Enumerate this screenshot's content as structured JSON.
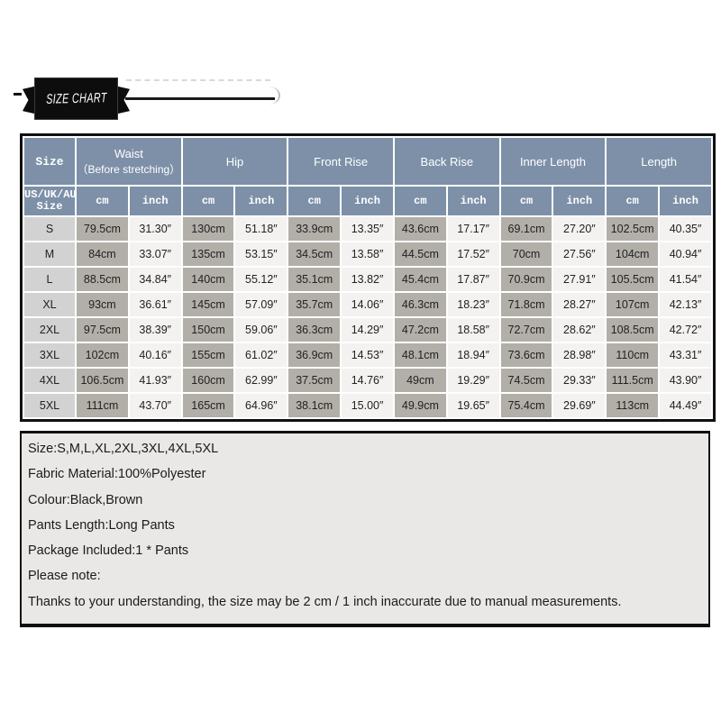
{
  "banner": {
    "title": "SIZE CHART"
  },
  "colors": {
    "ribbon": "#0d0d0d",
    "header_bg": "#7d90a8",
    "cm_col_bg": "#b2afa9",
    "inch_col_bg": "#f3f2f0",
    "size_col_bg": "#d2d2d2",
    "info_bg": "#e9e8e6"
  },
  "table": {
    "size_header": "Size",
    "size_subheader_line1": "US/UK/AU",
    "size_subheader_line2": "Size",
    "units": [
      "cm",
      "inch"
    ],
    "groups": [
      {
        "label": "Waist",
        "sublabel": "（Before stretching）"
      },
      {
        "label": "Hip",
        "sublabel": ""
      },
      {
        "label": "Front Rise",
        "sublabel": ""
      },
      {
        "label": "Back Rise",
        "sublabel": ""
      },
      {
        "label": "Inner Length",
        "sublabel": ""
      },
      {
        "label": "Length",
        "sublabel": ""
      }
    ],
    "rows": [
      {
        "size": "S",
        "cells": [
          "79.5cm",
          "31.30″",
          "130cm",
          "51.18″",
          "33.9cm",
          "13.35″",
          "43.6cm",
          "17.17″",
          "69.1cm",
          "27.20″",
          "102.5cm",
          "40.35″"
        ]
      },
      {
        "size": "M",
        "cells": [
          "84cm",
          "33.07″",
          "135cm",
          "53.15″",
          "34.5cm",
          "13.58″",
          "44.5cm",
          "17.52″",
          "70cm",
          "27.56″",
          "104cm",
          "40.94″"
        ]
      },
      {
        "size": "L",
        "cells": [
          "88.5cm",
          "34.84″",
          "140cm",
          "55.12″",
          "35.1cm",
          "13.82″",
          "45.4cm",
          "17.87″",
          "70.9cm",
          "27.91″",
          "105.5cm",
          "41.54″"
        ]
      },
      {
        "size": "XL",
        "cells": [
          "93cm",
          "36.61″",
          "145cm",
          "57.09″",
          "35.7cm",
          "14.06″",
          "46.3cm",
          "18.23″",
          "71.8cm",
          "28.27″",
          "107cm",
          "42.13″"
        ]
      },
      {
        "size": "2XL",
        "cells": [
          "97.5cm",
          "38.39″",
          "150cm",
          "59.06″",
          "36.3cm",
          "14.29″",
          "47.2cm",
          "18.58″",
          "72.7cm",
          "28.62″",
          "108.5cm",
          "42.72″"
        ]
      },
      {
        "size": "3XL",
        "cells": [
          "102cm",
          "40.16″",
          "155cm",
          "61.02″",
          "36.9cm",
          "14.53″",
          "48.1cm",
          "18.94″",
          "73.6cm",
          "28.98″",
          "110cm",
          "43.31″"
        ]
      },
      {
        "size": "4XL",
        "cells": [
          "106.5cm",
          "41.93″",
          "160cm",
          "62.99″",
          "37.5cm",
          "14.76″",
          "49cm",
          "19.29″",
          "74.5cm",
          "29.33″",
          "111.5cm",
          "43.90″"
        ]
      },
      {
        "size": "5XL",
        "cells": [
          "111cm",
          "43.70″",
          "165cm",
          "64.96″",
          "38.1cm",
          "15.00″",
          "49.9cm",
          "19.65″",
          "75.4cm",
          "29.69″",
          "113cm",
          "44.49″"
        ]
      }
    ]
  },
  "info": {
    "lines": [
      "Size:S,M,L,XL,2XL,3XL,4XL,5XL",
      "Fabric Material:100%Polyester",
      "Colour:Black,Brown",
      "Pants Length:Long Pants",
      "Package Included:1 * Pants",
      "Please note:",
      "Thanks to your understanding, the size may be 2 cm / 1 inch inaccurate due to manual measurements."
    ]
  }
}
